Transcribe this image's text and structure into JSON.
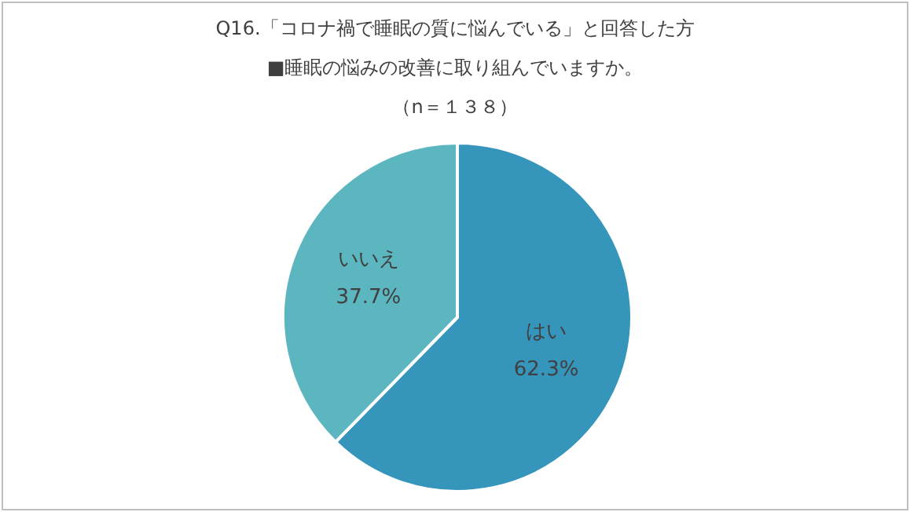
{
  "chart_data": {
    "type": "pie",
    "title": "Q16.「コロナ禍で睡眠の質に悩んでいる」と回答した方",
    "subtitle": "■睡眠の悩みの改善に取り組んでいますか。",
    "annotations": [
      "（n＝１３８）"
    ],
    "categories": [
      "はい",
      "いいえ"
    ],
    "values": [
      62.3,
      37.7
    ],
    "colors": [
      "#3595bb",
      "#5bb6c0"
    ],
    "value_labels": [
      "62.3%",
      "37.7%"
    ],
    "legend": false
  }
}
